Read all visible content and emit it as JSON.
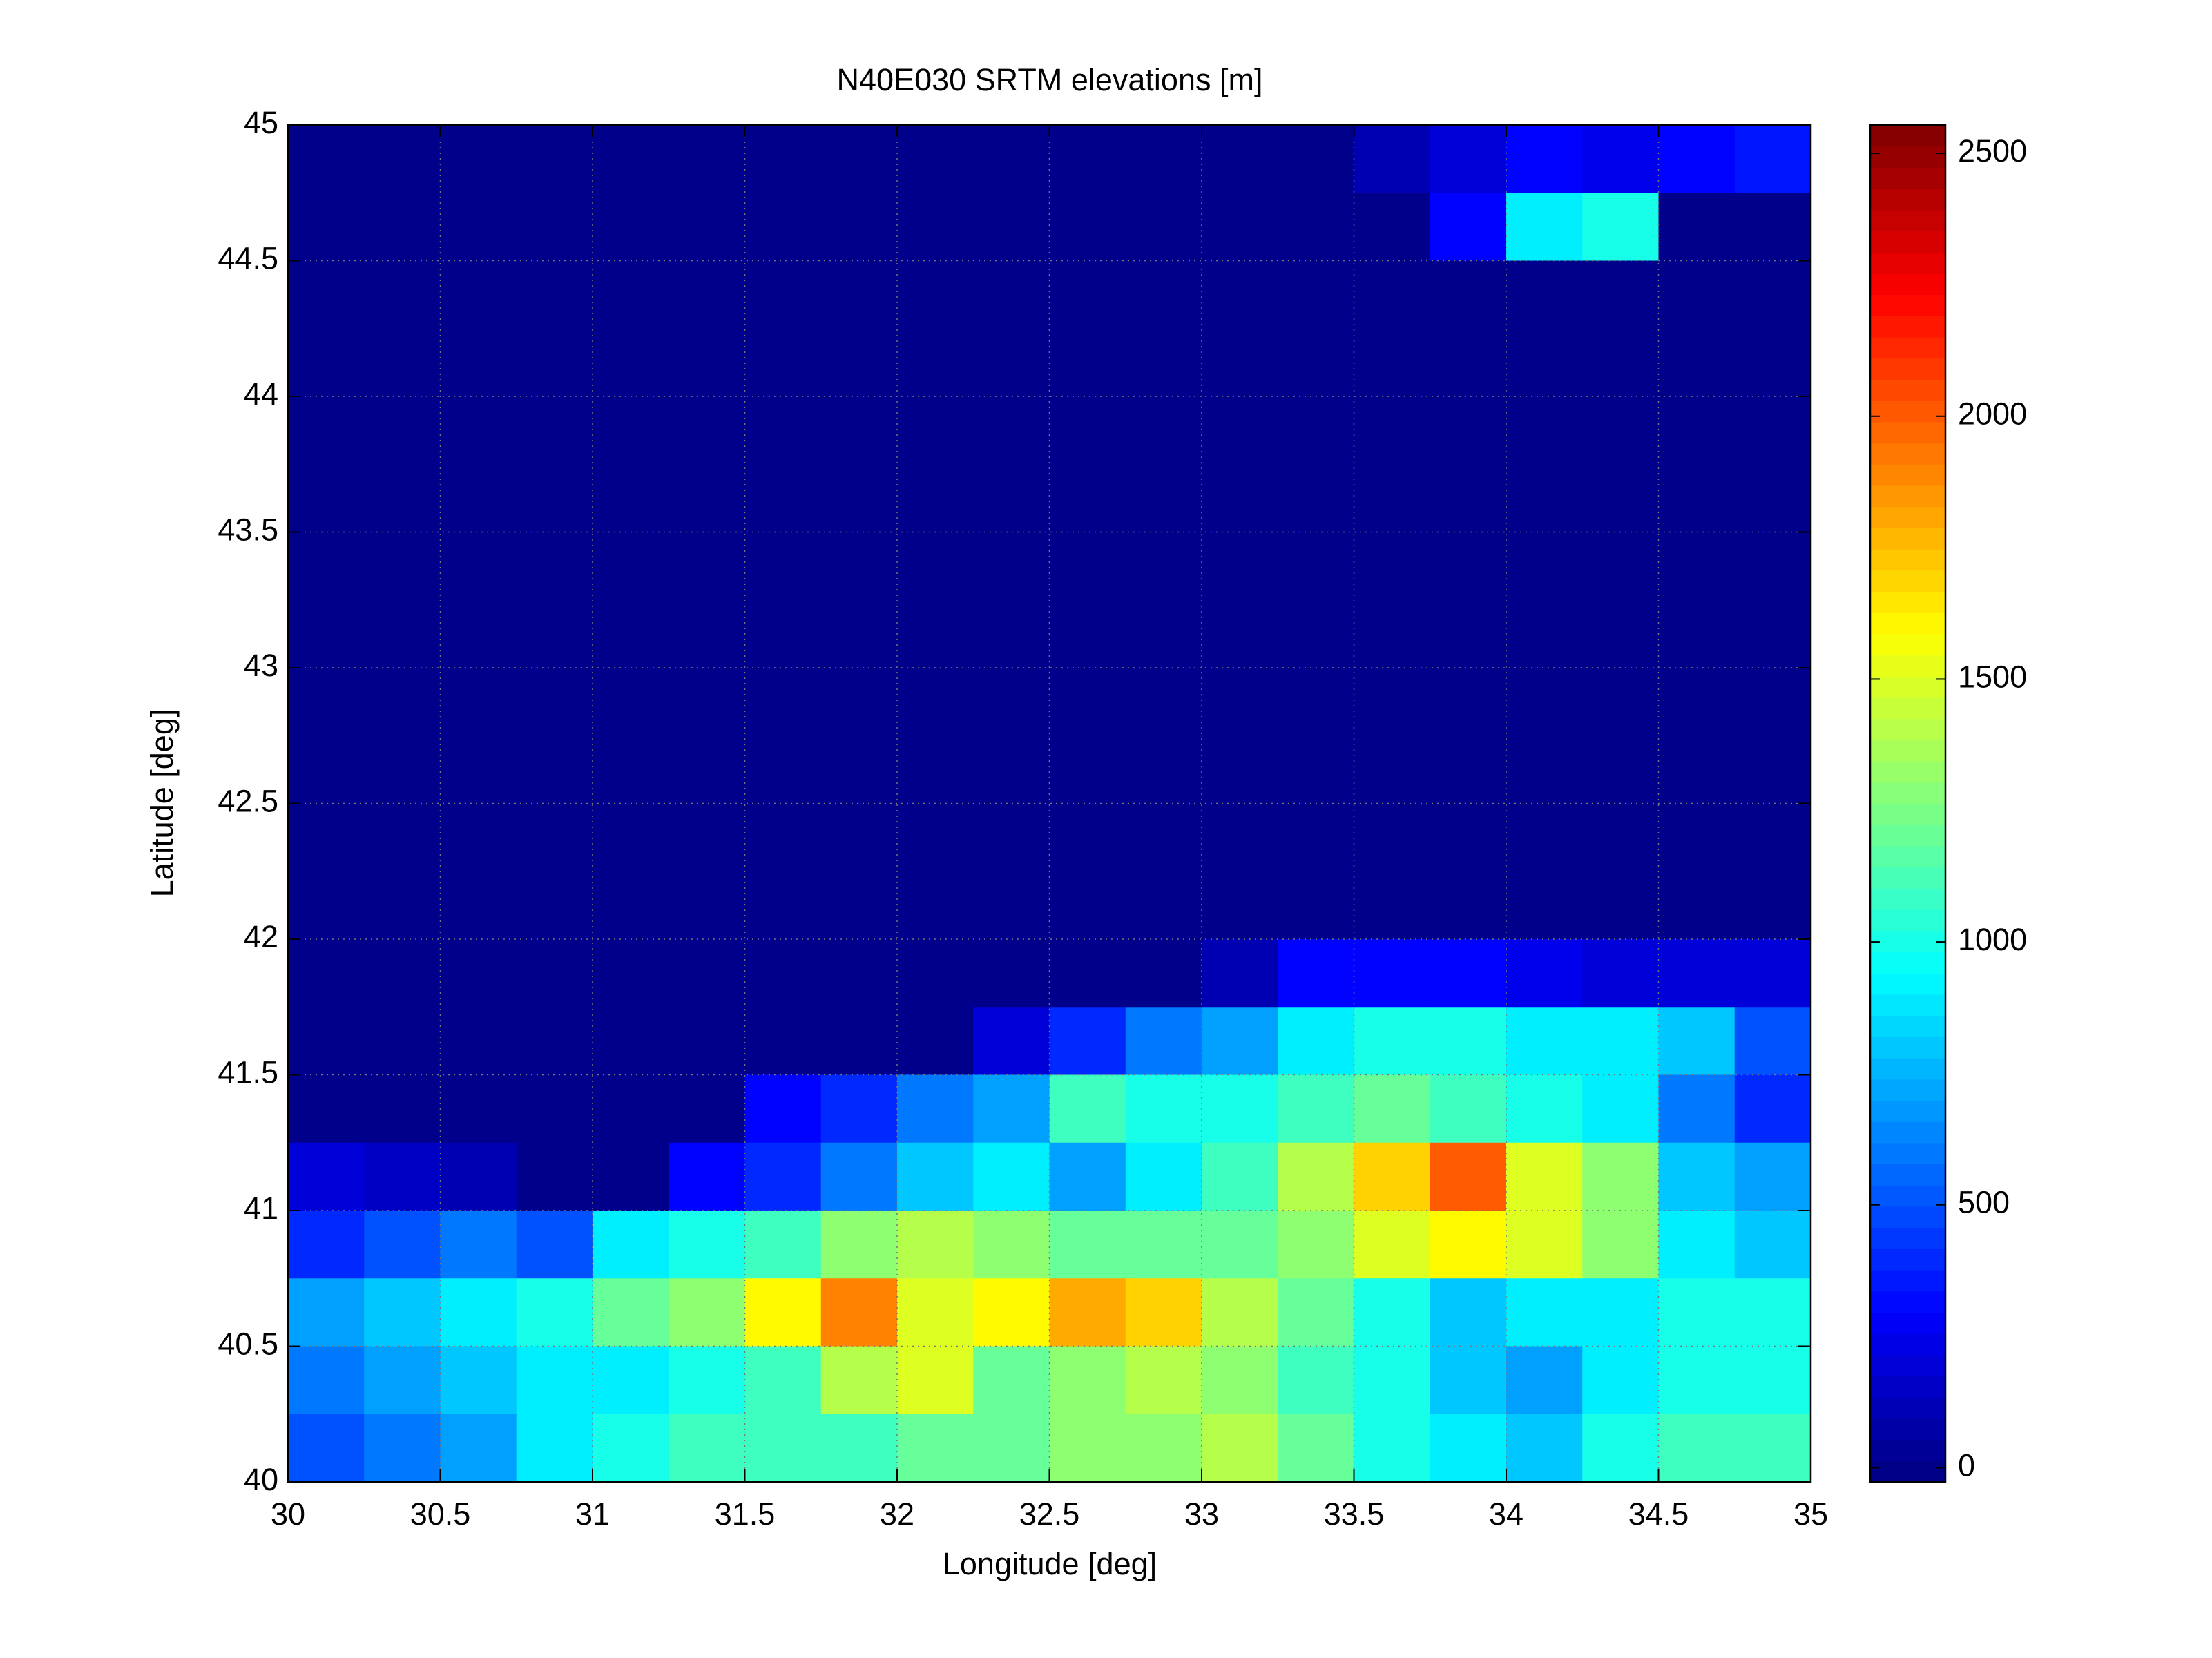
{
  "chart_data": {
    "type": "heatmap",
    "title": "N40E030 SRTM elevations [m]",
    "xlabel": "Longitude [deg]",
    "ylabel": "Latitude [deg]",
    "xlim": [
      30,
      35
    ],
    "ylim": [
      40,
      45
    ],
    "xticks": [
      30,
      30.5,
      31,
      31.5,
      32,
      32.5,
      33,
      33.5,
      34,
      34.5,
      35
    ],
    "yticks": [
      40,
      40.5,
      41,
      41.5,
      42,
      42.5,
      43,
      43.5,
      44,
      44.5,
      45
    ],
    "grid": true,
    "colormap": "jet",
    "clim": [
      -27,
      2554
    ],
    "cticks": [
      0,
      500,
      1000,
      1500,
      2000,
      2500
    ],
    "x": [
      30.125,
      30.375,
      30.625,
      30.875,
      31.125,
      31.375,
      31.625,
      31.875,
      32.125,
      32.375,
      32.625,
      32.875,
      33.125,
      33.375,
      33.625,
      33.875,
      34.125,
      34.375,
      34.625,
      34.875
    ],
    "y": [
      44.875,
      44.625,
      44.375,
      44.125,
      43.875,
      43.625,
      43.375,
      43.125,
      42.875,
      42.625,
      42.375,
      42.125,
      41.875,
      41.625,
      41.375,
      41.125,
      40.875,
      40.625,
      40.375,
      40.125
    ],
    "z": [
      [
        0,
        0,
        0,
        0,
        0,
        0,
        0,
        0,
        0,
        0,
        0,
        0,
        0,
        0,
        100,
        200,
        300,
        250,
        300,
        350
      ],
      [
        0,
        0,
        0,
        0,
        0,
        0,
        0,
        0,
        0,
        0,
        0,
        0,
        0,
        0,
        0,
        300,
        900,
        1000,
        0,
        0
      ],
      [
        0,
        0,
        0,
        0,
        0,
        0,
        0,
        0,
        0,
        0,
        0,
        0,
        0,
        0,
        0,
        0,
        0,
        0,
        0,
        0
      ],
      [
        0,
        0,
        0,
        0,
        0,
        0,
        0,
        0,
        0,
        0,
        0,
        0,
        0,
        0,
        0,
        0,
        0,
        0,
        0,
        0
      ],
      [
        0,
        0,
        0,
        0,
        0,
        0,
        0,
        0,
        0,
        0,
        0,
        0,
        0,
        0,
        0,
        0,
        0,
        0,
        0,
        0
      ],
      [
        0,
        0,
        0,
        0,
        0,
        0,
        0,
        0,
        0,
        0,
        0,
        0,
        0,
        0,
        0,
        0,
        0,
        0,
        0,
        0
      ],
      [
        0,
        0,
        0,
        0,
        0,
        0,
        0,
        0,
        0,
        0,
        0,
        0,
        0,
        0,
        0,
        0,
        0,
        0,
        0,
        0
      ],
      [
        0,
        0,
        0,
        0,
        0,
        0,
        0,
        0,
        0,
        0,
        0,
        0,
        0,
        0,
        0,
        0,
        0,
        0,
        0,
        0
      ],
      [
        0,
        0,
        0,
        0,
        0,
        0,
        0,
        0,
        0,
        0,
        0,
        0,
        0,
        0,
        0,
        0,
        0,
        0,
        0,
        0
      ],
      [
        0,
        0,
        0,
        0,
        0,
        0,
        0,
        0,
        0,
        0,
        0,
        0,
        0,
        0,
        0,
        0,
        0,
        0,
        0,
        0
      ],
      [
        0,
        0,
        0,
        0,
        0,
        0,
        0,
        0,
        0,
        0,
        0,
        0,
        0,
        0,
        0,
        0,
        0,
        0,
        0,
        0
      ],
      [
        0,
        0,
        0,
        0,
        0,
        0,
        0,
        0,
        0,
        0,
        0,
        0,
        0,
        0,
        0,
        0,
        0,
        0,
        0,
        0
      ],
      [
        0,
        0,
        0,
        0,
        0,
        0,
        0,
        0,
        0,
        0,
        0,
        0,
        100,
        300,
        300,
        300,
        250,
        200,
        200,
        200
      ],
      [
        0,
        0,
        0,
        0,
        0,
        0,
        0,
        0,
        0,
        200,
        400,
        600,
        700,
        900,
        1000,
        1000,
        900,
        900,
        800,
        500
      ],
      [
        0,
        0,
        0,
        0,
        0,
        0,
        300,
        400,
        600,
        700,
        1100,
        1000,
        1000,
        1100,
        1200,
        1100,
        1000,
        900,
        600,
        400
      ],
      [
        200,
        150,
        100,
        0,
        0,
        300,
        400,
        600,
        800,
        900,
        700,
        900,
        1100,
        1400,
        1700,
        2000,
        1500,
        1300,
        800,
        700
      ],
      [
        400,
        500,
        600,
        500,
        900,
        1000,
        1100,
        1300,
        1400,
        1300,
        1200,
        1200,
        1200,
        1300,
        1500,
        1600,
        1500,
        1300,
        900,
        800
      ],
      [
        700,
        800,
        900,
        1000,
        1200,
        1300,
        1600,
        1900,
        1500,
        1600,
        1800,
        1700,
        1400,
        1200,
        1000,
        800,
        900,
        900,
        1000,
        1000
      ],
      [
        600,
        700,
        800,
        900,
        900,
        1000,
        1100,
        1400,
        1500,
        1200,
        1300,
        1400,
        1300,
        1100,
        1000,
        800,
        700,
        900,
        1000,
        1000
      ],
      [
        500,
        600,
        700,
        900,
        1000,
        1100,
        1100,
        1100,
        1200,
        1200,
        1300,
        1300,
        1400,
        1200,
        1000,
        900,
        800,
        1000,
        1100,
        1100
      ]
    ]
  }
}
